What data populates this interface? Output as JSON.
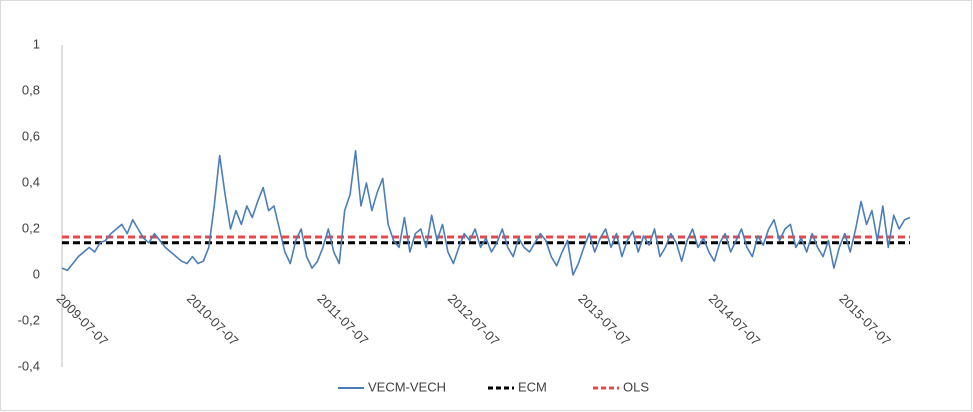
{
  "chart_data": {
    "type": "line",
    "categories": [
      "2009-07-07",
      null,
      null,
      null,
      null,
      null,
      null,
      null,
      null,
      null,
      null,
      null,
      null,
      null,
      null,
      null,
      null,
      null,
      null,
      null,
      null,
      null,
      null,
      null,
      "2010-07-07",
      null,
      null,
      null,
      null,
      null,
      null,
      null,
      null,
      null,
      null,
      null,
      null,
      null,
      null,
      null,
      null,
      null,
      null,
      null,
      null,
      null,
      null,
      null,
      "2011-07-07",
      null,
      null,
      null,
      null,
      null,
      null,
      null,
      null,
      null,
      null,
      null,
      null,
      null,
      null,
      null,
      null,
      null,
      null,
      null,
      null,
      null,
      null,
      null,
      "2012-07-07",
      null,
      null,
      null,
      null,
      null,
      null,
      null,
      null,
      null,
      null,
      null,
      null,
      null,
      null,
      null,
      null,
      null,
      null,
      null,
      null,
      null,
      null,
      null,
      "2013-07-07",
      null,
      null,
      null,
      null,
      null,
      null,
      null,
      null,
      null,
      null,
      null,
      null,
      null,
      null,
      null,
      null,
      null,
      null,
      null,
      null,
      null,
      null,
      null,
      "2014-07-07",
      null,
      null,
      null,
      null,
      null,
      null,
      null,
      null,
      null,
      null,
      null,
      null,
      null,
      null,
      null,
      null,
      null,
      null,
      null,
      null,
      null,
      null,
      null,
      "2015-07-07",
      null,
      null,
      null,
      null,
      null,
      null,
      null,
      null,
      null,
      null,
      null,
      null
    ],
    "series": [
      {
        "name": "VECM-VECH",
        "color": "#4a7ebb",
        "values": [
          0.03,
          0.02,
          0.05,
          0.08,
          0.1,
          0.12,
          0.1,
          0.14,
          0.15,
          0.18,
          0.2,
          0.22,
          0.18,
          0.24,
          0.2,
          0.16,
          0.14,
          0.18,
          0.15,
          0.12,
          0.1,
          0.08,
          0.06,
          0.05,
          0.08,
          0.05,
          0.06,
          0.12,
          0.3,
          0.52,
          0.35,
          0.2,
          0.28,
          0.22,
          0.3,
          0.25,
          0.32,
          0.38,
          0.28,
          0.3,
          0.2,
          0.1,
          0.05,
          0.15,
          0.2,
          0.08,
          0.03,
          0.06,
          0.12,
          0.2,
          0.1,
          0.05,
          0.28,
          0.35,
          0.54,
          0.3,
          0.4,
          0.28,
          0.36,
          0.42,
          0.22,
          0.15,
          0.12,
          0.25,
          0.1,
          0.18,
          0.2,
          0.12,
          0.26,
          0.15,
          0.22,
          0.1,
          0.05,
          0.12,
          0.18,
          0.15,
          0.2,
          0.12,
          0.16,
          0.1,
          0.14,
          0.2,
          0.12,
          0.08,
          0.16,
          0.12,
          0.1,
          0.14,
          0.18,
          0.15,
          0.08,
          0.04,
          0.1,
          0.15,
          0.0,
          0.05,
          0.12,
          0.18,
          0.1,
          0.16,
          0.2,
          0.12,
          0.18,
          0.08,
          0.15,
          0.19,
          0.1,
          0.17,
          0.13,
          0.2,
          0.08,
          0.12,
          0.18,
          0.14,
          0.06,
          0.15,
          0.2,
          0.12,
          0.16,
          0.1,
          0.06,
          0.14,
          0.18,
          0.1,
          0.15,
          0.2,
          0.12,
          0.08,
          0.17,
          0.13,
          0.2,
          0.24,
          0.15,
          0.2,
          0.22,
          0.12,
          0.16,
          0.1,
          0.18,
          0.12,
          0.08,
          0.15,
          0.03,
          0.12,
          0.18,
          0.1,
          0.2,
          0.32,
          0.22,
          0.28,
          0.15,
          0.3,
          0.12,
          0.26,
          0.2,
          0.24,
          0.25
        ]
      }
    ],
    "hlines": [
      {
        "name": "ECM",
        "color": "#000000",
        "value": 0.14
      },
      {
        "name": "OLS",
        "color": "#e8484a",
        "value": 0.165
      }
    ],
    "ylim": [
      -0.4,
      1
    ],
    "yticks": [
      {
        "value": -0.4,
        "label": "-0,4"
      },
      {
        "value": -0.2,
        "label": "-0,2"
      },
      0,
      {
        "value": 0.2,
        "label": "0,2"
      },
      {
        "value": 0.4,
        "label": "0,4"
      },
      {
        "value": 0.6,
        "label": "0,6"
      },
      {
        "value": 0.8,
        "label": "0,8"
      },
      1
    ],
    "grid": false,
    "legend": "bottom"
  }
}
